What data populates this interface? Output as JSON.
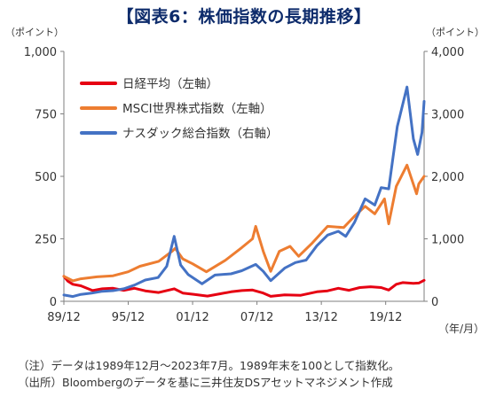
{
  "title": "【図表6：株価指数の長期推移】",
  "notes": {
    "note1": "（注）データは1989年12月～2023年7月。1989年末を100として指数化。",
    "source": "（出所）Bloombergのデータを基に三井住友DSアセットマネジメント作成"
  },
  "chart_data": {
    "type": "line",
    "title": "【図表6：株価指数の長期推移】",
    "xlabel": "（年/月）",
    "y_left_label": "（ポイント）",
    "y_right_label": "（ポイント）",
    "xlim": [
      1989.917,
      2023.5
    ],
    "x_ticks": [
      1989.917,
      1995.917,
      2001.917,
      2007.917,
      2013.917,
      2019.917
    ],
    "x_tick_labels": [
      "89/12",
      "95/12",
      "01/12",
      "07/12",
      "13/12",
      "19/12"
    ],
    "ylim_left": [
      0,
      1000
    ],
    "y_left_ticks": [
      0,
      250,
      500,
      750,
      1000
    ],
    "y_left_tick_labels": [
      "0",
      "250",
      "500",
      "750",
      "1,000"
    ],
    "ylim_right": [
      0,
      4000
    ],
    "y_right_ticks": [
      0,
      1000,
      2000,
      3000,
      4000
    ],
    "y_right_tick_labels": [
      "0",
      "1,000",
      "2,000",
      "3,000",
      "4,000"
    ],
    "grid": false,
    "legend": {
      "placement": "top-left"
    },
    "series": [
      {
        "name": "日経平均（左軸）",
        "axis": "left",
        "color": "#e60012",
        "x": [
          1989.917,
          1990.3,
          1990.75,
          1991.5,
          1992.6,
          1993.5,
          1994.5,
          1995.5,
          1996.5,
          1997.5,
          1998.75,
          2000.2,
          2001.0,
          2002.0,
          2003.3,
          2004.5,
          2005.5,
          2006.5,
          2007.5,
          2008.5,
          2009.2,
          2010.5,
          2012.0,
          2013.5,
          2014.5,
          2015.5,
          2016.5,
          2017.5,
          2018.5,
          2019.5,
          2020.2,
          2020.9,
          2021.5,
          2022.5,
          2023.0,
          2023.5
        ],
        "y": [
          100,
          80,
          68,
          62,
          43,
          50,
          52,
          44,
          52,
          42,
          35,
          50,
          33,
          28,
          21,
          30,
          38,
          43,
          45,
          33,
          20,
          26,
          24,
          38,
          42,
          52,
          44,
          55,
          58,
          55,
          45,
          68,
          75,
          72,
          73,
          84
        ]
      },
      {
        "name": "MSCI世界株式指数（左軸）",
        "axis": "left",
        "color": "#ed7d31",
        "x": [
          1989.917,
          1990.75,
          1991.5,
          1993.0,
          1994.5,
          1995.917,
          1997.0,
          1998.75,
          2000.0,
          2000.3,
          2001.0,
          2001.917,
          2003.2,
          2005.0,
          2006.5,
          2007.5,
          2007.8,
          2008.5,
          2009.2,
          2010.0,
          2011.0,
          2011.8,
          2013.0,
          2014.5,
          2016.0,
          2017.0,
          2018.0,
          2018.9,
          2019.8,
          2020.2,
          2020.9,
          2021.9,
          2022.8,
          2023.0,
          2023.5
        ],
        "y": [
          100,
          82,
          90,
          98,
          102,
          118,
          140,
          160,
          200,
          212,
          170,
          150,
          118,
          165,
          215,
          250,
          300,
          200,
          120,
          200,
          220,
          180,
          230,
          300,
          295,
          340,
          380,
          350,
          410,
          310,
          460,
          545,
          430,
          470,
          500
        ]
      },
      {
        "name": "ナスダック総合指数（右軸）",
        "axis": "right",
        "color": "#4472c4",
        "x": [
          1989.917,
          1990.75,
          1991.5,
          1992.5,
          1993.5,
          1994.5,
          1995.5,
          1996.5,
          1997.5,
          1998.7,
          1999.5,
          2000.2,
          2000.8,
          2001.5,
          2002.8,
          2004.0,
          2005.5,
          2006.5,
          2007.8,
          2008.5,
          2009.2,
          2010.5,
          2011.5,
          2012.5,
          2013.5,
          2014.5,
          2015.5,
          2016.2,
          2017.0,
          2018.0,
          2018.9,
          2019.5,
          2020.2,
          2020.6,
          2021.0,
          2021.9,
          2022.5,
          2022.9,
          2023.3,
          2023.5
        ],
        "y": [
          100,
          76,
          110,
          130,
          160,
          170,
          200,
          260,
          340,
          380,
          560,
          1040,
          580,
          430,
          280,
          420,
          440,
          490,
          590,
          480,
          330,
          530,
          620,
          660,
          890,
          1060,
          1120,
          1040,
          1260,
          1640,
          1540,
          1820,
          1800,
          2300,
          2800,
          3430,
          2600,
          2350,
          2700,
          3200
        ]
      }
    ]
  }
}
